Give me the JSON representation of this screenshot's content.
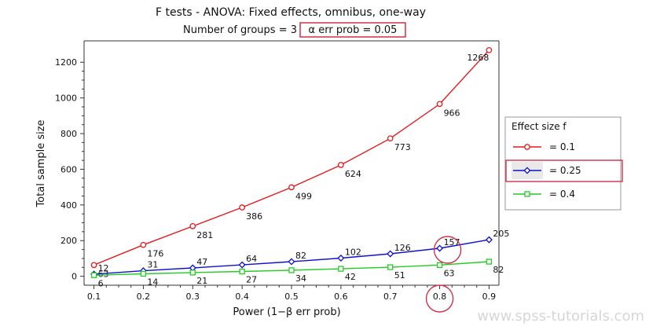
{
  "chart_data": {
    "type": "line",
    "title": "F tests - ANOVA: Fixed effects, omnibus, one-way",
    "subtitle_prefix": "Number of groups = 3",
    "subtitle_highlight": "α err prob = 0.05",
    "xlabel": "Power (1−β err prob)",
    "ylabel": "Total sample size",
    "xlim": [
      0.08,
      0.92
    ],
    "ylim": [
      -50,
      1320
    ],
    "xticks": [
      0.1,
      0.2,
      0.3,
      0.4,
      0.5,
      0.6,
      0.7,
      0.8,
      0.9
    ],
    "xtick_labels": [
      "0.1",
      "0.2",
      "0.3",
      "0.4",
      "0.5",
      "0.6",
      "0.7",
      "0.8",
      "0.9"
    ],
    "yticks": [
      0,
      200,
      400,
      600,
      800,
      1000,
      1200
    ],
    "ytick_labels": [
      "0",
      "200",
      "400",
      "600",
      "800",
      "1000",
      "1200"
    ],
    "grid": false,
    "legend_position": "right",
    "legend_title": "Effect size f",
    "highlight_x": 0.8,
    "series": [
      {
        "name": "= 0.1",
        "color": "#e41a1c",
        "marker": "circle",
        "x": [
          0.1,
          0.2,
          0.3,
          0.4,
          0.5,
          0.6,
          0.7,
          0.8,
          0.9
        ],
        "values": [
          63,
          176,
          281,
          386,
          499,
          624,
          773,
          966,
          1268
        ],
        "labels": [
          "63",
          "176",
          "281",
          "386",
          "499",
          "624",
          "773",
          "966",
          "1268"
        ]
      },
      {
        "name": "= 0.25",
        "color": "#1010d0",
        "marker": "diamond",
        "x": [
          0.1,
          0.2,
          0.3,
          0.4,
          0.5,
          0.6,
          0.7,
          0.8,
          0.9
        ],
        "values": [
          12,
          31,
          47,
          64,
          82,
          102,
          126,
          157,
          205
        ],
        "labels": [
          "12",
          "31",
          "47",
          "64",
          "82",
          "102",
          "126",
          "157",
          "205"
        ]
      },
      {
        "name": "= 0.4",
        "color": "#22cc22",
        "marker": "square",
        "x": [
          0.1,
          0.2,
          0.3,
          0.4,
          0.5,
          0.6,
          0.7,
          0.8,
          0.9
        ],
        "values": [
          6,
          14,
          21,
          27,
          34,
          42,
          51,
          63,
          82
        ],
        "labels": [
          "6",
          "14",
          "21",
          "27",
          "34",
          "42",
          "51",
          "63",
          "82"
        ]
      }
    ]
  },
  "watermark": "www.spss-tutorials.com"
}
